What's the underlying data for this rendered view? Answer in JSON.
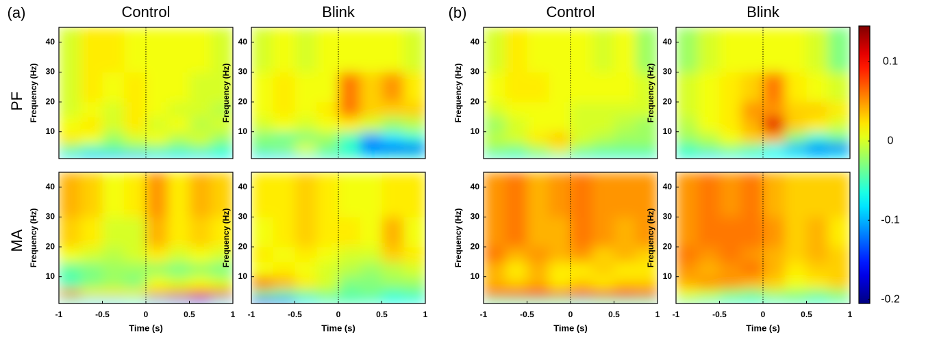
{
  "figure": {
    "panel_labels": [
      "(a)",
      "(b)"
    ],
    "row_labels": [
      "PF",
      "MA"
    ]
  },
  "chart_data": [
    {
      "type": "heatmap",
      "title": "Control",
      "ylabel": "Frequency (Hz)",
      "colormap": "jet",
      "x_edges": [
        -1,
        -0.75,
        -0.5,
        -0.25,
        0,
        0.25,
        0.5,
        0.75,
        1
      ],
      "y_edges": [
        1,
        3,
        6,
        10,
        15,
        20,
        30,
        45
      ],
      "xlim": [
        -1,
        1
      ],
      "ylim": [
        1,
        45
      ],
      "yticks": [
        10,
        20,
        30,
        40
      ],
      "vline": 0,
      "z": [
        [
          -0.08,
          -0.09,
          -0.09,
          -0.09,
          -0.08,
          -0.08,
          -0.08,
          -0.07
        ],
        [
          -0.03,
          -0.05,
          -0.04,
          -0.03,
          -0.03,
          -0.04,
          -0.03,
          -0.05
        ],
        [
          0.02,
          0.01,
          -0.02,
          0,
          0.01,
          -0.01,
          0,
          -0.02
        ],
        [
          0.01,
          0.02,
          0,
          0.02,
          0,
          0.01,
          -0.01,
          0
        ],
        [
          0,
          0.01,
          0,
          0.02,
          0.01,
          0,
          0,
          -0.01
        ],
        [
          0,
          0.02,
          0.01,
          0.02,
          0.01,
          0.01,
          0,
          0
        ],
        [
          0,
          0.02,
          0.02,
          0.01,
          0.01,
          0.01,
          0.01,
          0
        ]
      ]
    },
    {
      "type": "heatmap",
      "title": "Blink",
      "ylabel": "Frequency (Hz)",
      "colormap": "jet",
      "x_edges": [
        -1,
        -0.75,
        -0.5,
        -0.25,
        0,
        0.25,
        0.5,
        0.75,
        1
      ],
      "y_edges": [
        1,
        3,
        6,
        10,
        15,
        20,
        30,
        45
      ],
      "xlim": [
        -1,
        1
      ],
      "ylim": [
        1,
        45
      ],
      "yticks": [
        10,
        20,
        30,
        40
      ],
      "vline": 0,
      "z": [
        [
          -0.08,
          -0.08,
          -0.06,
          -0.06,
          -0.05,
          -0.07,
          -0.06,
          -0.06
        ],
        [
          -0.03,
          -0.02,
          0.01,
          -0.03,
          -0.06,
          -0.14,
          -0.16,
          -0.15
        ],
        [
          -0.03,
          -0.04,
          -0.03,
          -0.02,
          -0.05,
          -0.1,
          -0.08,
          -0.06
        ],
        [
          0,
          0.01,
          0,
          0.01,
          0.02,
          0,
          -0.02,
          -0.01
        ],
        [
          0.01,
          0.02,
          0.01,
          0.02,
          0.06,
          0.03,
          0.03,
          0.03
        ],
        [
          0.01,
          0.02,
          0.01,
          0.01,
          0.06,
          0.03,
          0.05,
          0.02
        ],
        [
          0,
          0.01,
          0,
          0.01,
          0.01,
          0.01,
          0.01,
          0
        ]
      ]
    },
    {
      "type": "heatmap",
      "ylabel": "Frequency (Hz)",
      "xlabel": "Time (s)",
      "colormap": "jet",
      "x_edges": [
        -1,
        -0.75,
        -0.5,
        -0.25,
        0,
        0.25,
        0.5,
        0.75,
        1
      ],
      "y_edges": [
        1,
        3,
        6,
        10,
        15,
        20,
        30,
        45
      ],
      "xlim": [
        -1,
        1
      ],
      "ylim": [
        1,
        45
      ],
      "xticks": [
        -1,
        -0.5,
        0,
        0.5,
        1
      ],
      "yticks": [
        10,
        20,
        30,
        40
      ],
      "vline": 0,
      "z": [
        [
          -0.06,
          -0.08,
          -0.08,
          -0.07,
          -0.09,
          -0.1,
          -0.11,
          -0.08
        ],
        [
          0.05,
          0.02,
          0.02,
          0.02,
          0.04,
          0.05,
          0.07,
          0.06
        ],
        [
          -0.05,
          -0.03,
          -0.02,
          -0.03,
          0.01,
          0,
          0.01,
          0
        ],
        [
          -0.04,
          -0.03,
          -0.02,
          -0.02,
          -0.02,
          -0.03,
          -0.02,
          -0.03
        ],
        [
          0.01,
          0,
          -0.01,
          0,
          0.02,
          0,
          0.01,
          0
        ],
        [
          0.03,
          0.02,
          0,
          0,
          0.04,
          0.02,
          0.03,
          0.02
        ],
        [
          0.04,
          0.03,
          0.01,
          0.02,
          0.05,
          0.02,
          0.04,
          0.03
        ]
      ]
    },
    {
      "type": "heatmap",
      "ylabel": "Frequency (Hz)",
      "xlabel": "Time (s)",
      "colormap": "jet",
      "x_edges": [
        -1,
        -0.75,
        -0.5,
        -0.25,
        0,
        0.25,
        0.5,
        0.75,
        1
      ],
      "y_edges": [
        1,
        3,
        6,
        10,
        15,
        20,
        30,
        45
      ],
      "xlim": [
        -1,
        1
      ],
      "ylim": [
        1,
        45
      ],
      "xticks": [
        -1,
        -0.5,
        0,
        0.5,
        1
      ],
      "yticks": [
        10,
        20,
        30,
        40
      ],
      "vline": 0,
      "z": [
        [
          -0.15,
          -0.12,
          -0.08,
          -0.06,
          -0.05,
          -0.06,
          -0.07,
          -0.07
        ],
        [
          -0.03,
          -0.04,
          -0.03,
          -0.02,
          -0.04,
          -0.03,
          -0.05,
          -0.04
        ],
        [
          0.06,
          0.04,
          0.02,
          0,
          -0.03,
          -0.03,
          -0.02,
          -0.02
        ],
        [
          0.01,
          0.02,
          0.01,
          0,
          -0.01,
          -0.02,
          -0.01,
          0
        ],
        [
          0.02,
          0.01,
          0.02,
          0.01,
          0,
          0,
          0.03,
          0.02
        ],
        [
          0.01,
          0.02,
          0.03,
          0.02,
          0.02,
          0.01,
          0.04,
          0.01
        ],
        [
          0.02,
          0.02,
          0.03,
          0.02,
          0.01,
          0.01,
          0.02,
          0.02
        ]
      ]
    },
    {
      "type": "heatmap",
      "title": "Control",
      "ylabel": "Frequency (Hz)",
      "colormap": "jet",
      "x_edges": [
        -1,
        -0.75,
        -0.5,
        -0.25,
        0,
        0.25,
        0.5,
        0.75,
        1
      ],
      "y_edges": [
        1,
        3,
        6,
        10,
        15,
        20,
        30,
        45
      ],
      "xlim": [
        -1,
        1
      ],
      "ylim": [
        1,
        45
      ],
      "yticks": [
        10,
        20,
        30,
        40
      ],
      "vline": 0,
      "z": [
        [
          -0.06,
          -0.06,
          -0.05,
          -0.05,
          -0.06,
          -0.06,
          -0.06,
          -0.06
        ],
        [
          -0.02,
          -0.03,
          -0.01,
          0.02,
          -0.02,
          -0.03,
          -0.03,
          -0.03
        ],
        [
          -0.01,
          0,
          0.02,
          0.03,
          0,
          -0.01,
          -0.02,
          -0.02
        ],
        [
          -0.02,
          0,
          0.01,
          0.01,
          0,
          0,
          -0.01,
          -0.02
        ],
        [
          0,
          0.01,
          0.01,
          0.01,
          0,
          0,
          0,
          0
        ],
        [
          0.01,
          0.02,
          0.02,
          0.01,
          0.01,
          0.01,
          0.01,
          0
        ],
        [
          0,
          0.02,
          0.01,
          0.01,
          0.01,
          0,
          0.01,
          -0.02
        ]
      ]
    },
    {
      "type": "heatmap",
      "title": "Blink",
      "ylabel": "Frequency (Hz)",
      "colormap": "jet",
      "x_edges": [
        -1,
        -0.75,
        -0.5,
        -0.25,
        0,
        0.25,
        0.5,
        0.75,
        1
      ],
      "y_edges": [
        1,
        3,
        6,
        10,
        15,
        20,
        30,
        45
      ],
      "xlim": [
        -1,
        1
      ],
      "ylim": [
        1,
        45
      ],
      "yticks": [
        10,
        20,
        30,
        40
      ],
      "vline": 0,
      "z": [
        [
          -0.06,
          -0.08,
          -0.07,
          -0.07,
          -0.07,
          -0.07,
          -0.08,
          -0.07
        ],
        [
          -0.05,
          -0.03,
          -0.02,
          -0.04,
          -0.07,
          -0.1,
          -0.13,
          -0.13
        ],
        [
          -0.02,
          -0.01,
          0.01,
          0.03,
          0.04,
          -0.03,
          -0.06,
          -0.04
        ],
        [
          -0.01,
          0.01,
          0.02,
          0.04,
          0.11,
          0.03,
          0.02,
          0
        ],
        [
          0,
          0.01,
          0.02,
          0.05,
          0.05,
          0.03,
          0.03,
          0.02
        ],
        [
          0,
          0.01,
          0.02,
          0.03,
          0.06,
          0.02,
          0.01,
          0
        ],
        [
          -0.02,
          0,
          0.01,
          0.01,
          0.01,
          0.01,
          0,
          -0.03
        ]
      ]
    },
    {
      "type": "heatmap",
      "ylabel": "Frequency (Hz)",
      "xlabel": "Time (s)",
      "colormap": "jet",
      "x_edges": [
        -1,
        -0.75,
        -0.5,
        -0.25,
        0,
        0.25,
        0.5,
        0.75,
        1
      ],
      "y_edges": [
        1,
        3,
        6,
        10,
        15,
        20,
        30,
        45
      ],
      "xlim": [
        -1,
        1
      ],
      "ylim": [
        1,
        45
      ],
      "xticks": [
        -1,
        -0.5,
        0,
        0.5,
        1
      ],
      "yticks": [
        10,
        20,
        30,
        40
      ],
      "vline": 0,
      "z": [
        [
          -0.05,
          -0.05,
          -0.05,
          -0.05,
          -0.06,
          -0.05,
          -0.05,
          -0.05
        ],
        [
          0.06,
          0.07,
          0.08,
          0.06,
          0.08,
          0.07,
          0.09,
          0.07
        ],
        [
          0.04,
          0.03,
          0.04,
          0.02,
          0.03,
          0.02,
          0.03,
          0.03
        ],
        [
          0.04,
          0.02,
          0.04,
          0.02,
          0.02,
          0.03,
          0.02,
          0.02
        ],
        [
          0.06,
          0.04,
          0.05,
          0.04,
          0.05,
          0.03,
          0.04,
          0.03
        ],
        [
          0.05,
          0.06,
          0.04,
          0.04,
          0.06,
          0.05,
          0.04,
          0.05
        ],
        [
          0.05,
          0.06,
          0.04,
          0.05,
          0.06,
          0.05,
          0.05,
          0.05
        ]
      ]
    },
    {
      "type": "heatmap",
      "ylabel": "Frequency (Hz)",
      "xlabel": "Time (s)",
      "colormap": "jet",
      "x_edges": [
        -1,
        -0.75,
        -0.5,
        -0.25,
        0,
        0.25,
        0.5,
        0.75,
        1
      ],
      "y_edges": [
        1,
        3,
        6,
        10,
        15,
        20,
        30,
        45
      ],
      "xlim": [
        -1,
        1
      ],
      "ylim": [
        1,
        45
      ],
      "xticks": [
        -1,
        -0.5,
        0,
        0.5,
        1
      ],
      "yticks": [
        10,
        20,
        30,
        40
      ],
      "vline": 0,
      "z": [
        [
          -0.04,
          -0.05,
          -0.06,
          -0.06,
          -0.06,
          -0.05,
          -0.06,
          -0.05
        ],
        [
          0.01,
          0,
          -0.02,
          -0.03,
          -0.01,
          -0.02,
          -0.03,
          -0.02
        ],
        [
          0.04,
          0.05,
          0.05,
          0.04,
          0.03,
          0.01,
          0.02,
          0.03
        ],
        [
          0.05,
          0.04,
          0.05,
          0.06,
          0.04,
          0.02,
          0.03,
          0.03
        ],
        [
          0.06,
          0.05,
          0.06,
          0.05,
          0.04,
          0.03,
          0.04,
          0.03
        ],
        [
          0.05,
          0.06,
          0.06,
          0.06,
          0.05,
          0.03,
          0.04,
          0.02
        ],
        [
          0.05,
          0.06,
          0.05,
          0.06,
          0.04,
          0.03,
          0.03,
          0.03
        ]
      ]
    },
    {
      "type": "colorbar",
      "colormap": "jet",
      "ylim": [
        -0.205,
        0.145
      ],
      "yticks": [
        -0.2,
        -0.1,
        0,
        0.1
      ]
    }
  ]
}
